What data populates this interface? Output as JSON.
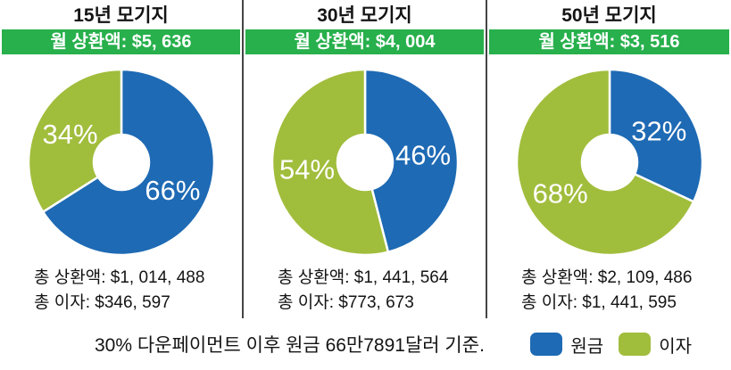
{
  "colors": {
    "principal_blue": "#1e6ab4",
    "interest_green": "#a1bd3c",
    "banner_green": "#27b04c",
    "divider_gray": "#454545",
    "percent_label_white": "#ffffff"
  },
  "columns": [
    {
      "title": "15년 모기지",
      "monthly_label": "월 상환액: $5, 636",
      "total_payment": "총 상환액: $1, 014, 488",
      "total_interest": "총 이자: $346, 597",
      "principal_pct": 66,
      "interest_pct": 34,
      "principal_pct_label": "66%",
      "interest_pct_label": "34%"
    },
    {
      "title": "30년 모기지",
      "monthly_label": "월 상환액: $4, 004",
      "total_payment": "총 상환액: $1, 441, 564",
      "total_interest": "총 이자: $773, 673",
      "principal_pct": 46,
      "interest_pct": 54,
      "principal_pct_label": "46%",
      "interest_pct_label": "54%"
    },
    {
      "title": "50년 모기지",
      "monthly_label": "월 상환액: $3, 516",
      "total_payment": "총 상환액: $2, 109, 486",
      "total_interest": "총 이자: $1, 441, 595",
      "principal_pct": 32,
      "interest_pct": 68,
      "principal_pct_label": "32%",
      "interest_pct_label": "68%"
    }
  ],
  "legend": {
    "items": [
      {
        "label": "원금",
        "key": "principal",
        "color": "#1e6ab4"
      },
      {
        "label": "이자",
        "key": "interest",
        "color": "#a1bd3c"
      }
    ]
  },
  "footnote": "30% 다운페이먼트 이후 원금 66만7891달러 기준.",
  "chart_data": [
    {
      "type": "pie",
      "donut": true,
      "title": "15년 모기지",
      "subtitle": "월 상환액: $5,636",
      "labels": [
        "원금",
        "이자"
      ],
      "values_pct": [
        66,
        34
      ],
      "monthly_payment_usd": 5636,
      "total_payment_usd": 1014488,
      "total_interest_usd": 346597,
      "colors": [
        "#1e6ab4",
        "#a1bd3c"
      ],
      "start_angle_deg": 0,
      "direction": "clockwise"
    },
    {
      "type": "pie",
      "donut": true,
      "title": "30년 모기지",
      "subtitle": "월 상환액: $4,004",
      "labels": [
        "원금",
        "이자"
      ],
      "values_pct": [
        46,
        54
      ],
      "monthly_payment_usd": 4004,
      "total_payment_usd": 1441564,
      "total_interest_usd": 773673,
      "colors": [
        "#1e6ab4",
        "#a1bd3c"
      ],
      "start_angle_deg": 0,
      "direction": "clockwise"
    },
    {
      "type": "pie",
      "donut": true,
      "title": "50년 모기지",
      "subtitle": "월 상환액: $3,516",
      "labels": [
        "원금",
        "이자"
      ],
      "values_pct": [
        32,
        68
      ],
      "monthly_payment_usd": 3516,
      "total_payment_usd": 2109486,
      "total_interest_usd": 1441595,
      "colors": [
        "#1e6ab4",
        "#a1bd3c"
      ],
      "start_angle_deg": 0,
      "direction": "clockwise"
    }
  ]
}
